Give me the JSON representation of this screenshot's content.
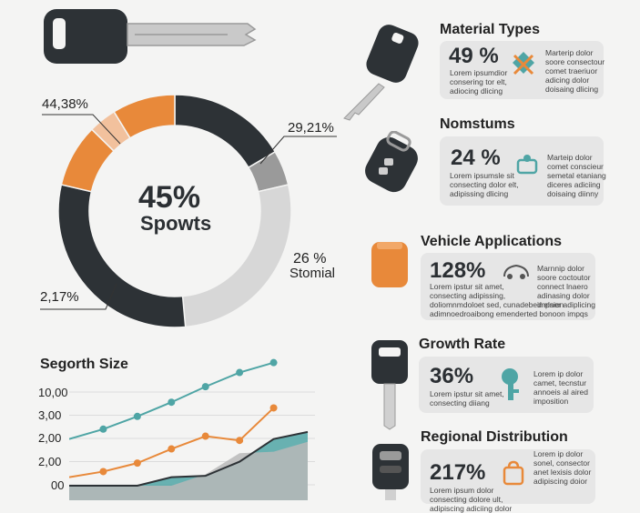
{
  "colors": {
    "dark": "#2d3236",
    "orange": "#e8893a",
    "peach": "#f2c19d",
    "grey": "#9a9a9a",
    "light": "#d7d7d7",
    "teal": "#4fa5a5"
  },
  "donut": {
    "center_pct": "45%",
    "center_label": "Spowts",
    "callouts": {
      "top_left": "44,38%",
      "top_right": "29,21%",
      "right_pct": "26 %",
      "right_label": "Stomial",
      "bottom_left": "2,17%"
    }
  },
  "chart_data": [
    {
      "type": "pie",
      "title": "",
      "slices": [
        {
          "label": "dark-top",
          "value": 17,
          "color": "#2d3236"
        },
        {
          "label": "grey",
          "value": 5,
          "color": "#9a9a9a"
        },
        {
          "label": "light",
          "value": 28,
          "color": "#d7d7d7"
        },
        {
          "label": "dark-bottom",
          "value": 31,
          "color": "#2d3236"
        },
        {
          "label": "orange-left",
          "value": 9,
          "color": "#e8893a"
        },
        {
          "label": "peach",
          "value": 4,
          "color": "#f2c19d"
        },
        {
          "label": "orange-top",
          "value": 9,
          "color": "#e8893a"
        }
      ],
      "start_angle_deg": 0
    },
    {
      "type": "line",
      "title": "Segorth Size",
      "y_tick_labels": [
        "10,00",
        "3,00",
        "2,00",
        "2,00",
        "00"
      ],
      "x": [
        0,
        1,
        2,
        3,
        4,
        5,
        6,
        7
      ],
      "series": [
        {
          "values": [
            3.3,
            4.0,
            4.9,
            5.9,
            7.0,
            8.0,
            8.7,
            null
          ],
          "color": "#4fa5a5"
        },
        {
          "values": [
            0.6,
            1.0,
            1.6,
            2.6,
            3.5,
            3.2,
            5.5,
            null
          ],
          "color": "#e8893a"
        }
      ],
      "area_series": [
        {
          "values": [
            0,
            0,
            0,
            0.6,
            0.7,
            1.7,
            3.3,
            3.8
          ],
          "color": "#4fa5a5"
        },
        {
          "values": [
            0,
            0,
            0,
            0,
            0.8,
            2.3,
            2.4,
            3.1
          ],
          "color": "#b9b9b9"
        }
      ],
      "ylim": [
        0,
        9
      ]
    }
  ],
  "cards": [
    {
      "title": "Material Types",
      "pct": "49 %",
      "body": "Lorem ipsumdior\nconsering tor elt,\nadiocing dlicing",
      "side": "Marterip dolor\nsoore consectour\ncomet traeriuor\nadicing dolor\ndoisaing dlicing"
    },
    {
      "title": "Nomstums",
      "pct": "24 %",
      "body": "Lorem ipsumsle sit\nconsecting dolor elt,\nadipissing dlicing",
      "side": "Marteip dolor\ncomet conscieur\nsemetal etaniang\ndiceres adiciing\ndoisaing diinny"
    },
    {
      "title": "Vehicle Applications",
      "pct": "128%",
      "body": "Lorem ipstur sit amet,\nconsecting adipissing,\ndoliomnmdoloet sed, cunadebed elner adiplicing\nadimnoedroaibong emenderted bonoon impqs",
      "side": "Marnnip dolor\nsoore coctoutor\nconnect lnaero\nadinasing dolor\nimpsion"
    },
    {
      "title": "Growth Rate",
      "pct": "36%",
      "body": "Lorem ipstur sit amet,\nconsecting diiang",
      "side": "Lorem ip dolor\ncamet, tecnstur\nannoeis al aired\nimposition"
    },
    {
      "title": "Regional Distribution",
      "pct": "217%",
      "body": "Lorem ipsum dolor\nconsecting dolore ult,\nadipiscing adiciing dolor",
      "side": "Lorem ip dolor\nsonel, consector\nanet lexisis dolor\nadipiscing doior"
    }
  ]
}
